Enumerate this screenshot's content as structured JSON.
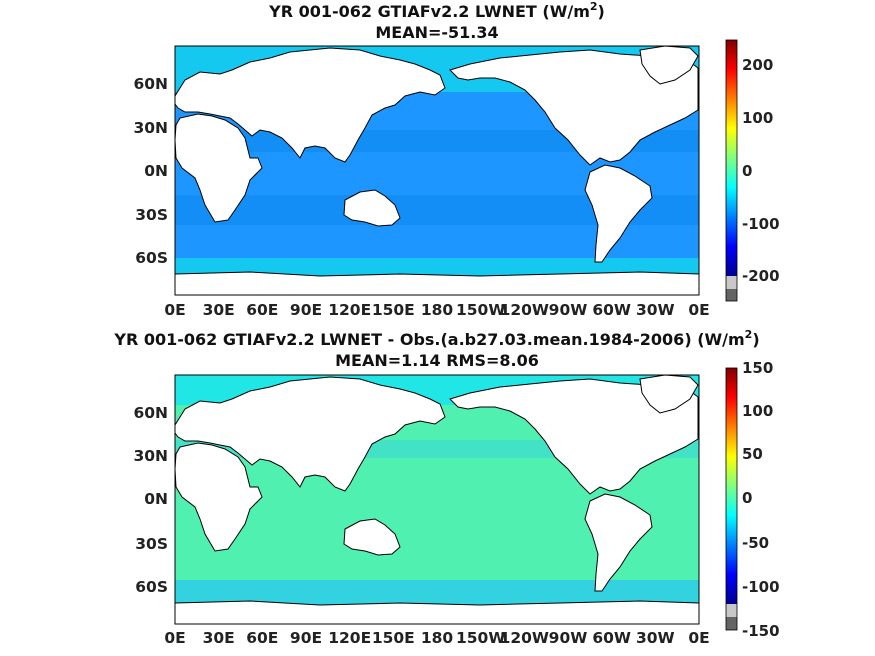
{
  "chart_data": [
    {
      "type": "heatmap",
      "title": "YR 001-062 GTIAFv2.2  LWNET (W/m",
      "title_superscript": "2",
      "title_suffix": ")",
      "subtitle": "MEAN=-51.34",
      "xlabel": "",
      "ylabel": "",
      "x_ticks": [
        "0E",
        "30E",
        "60E",
        "90E",
        "120E",
        "150E",
        "180",
        "150W",
        "120W",
        "90W",
        "60W",
        "30W",
        "0E"
      ],
      "y_ticks": [
        "60N",
        "30N",
        "0N",
        "30S",
        "60S"
      ],
      "y_tick_values": [
        60,
        30,
        0,
        -30,
        -60
      ],
      "colorbar": {
        "range": [
          -250,
          250
        ],
        "ticks": [
          200,
          100,
          0,
          -100,
          -200
        ],
        "tick_labels": [
          "200",
          "100",
          "0",
          "-100",
          "-200"
        ]
      },
      "colors": {
        "ocean_main": "#1e96ff",
        "ocean_high_lat": "#14c8f0",
        "ocean_subtropic": "#0a88ee",
        "land": "#ffffff"
      }
    },
    {
      "type": "heatmap",
      "title": "YR 001-062 GTIAFv2.2 LWNET - Obs.(a.b27.03.mean.1984-2006) (W/m",
      "title_superscript": "2",
      "title_suffix": ")",
      "subtitle": "MEAN=1.14 RMS=8.06",
      "xlabel": "",
      "ylabel": "",
      "x_ticks": [
        "0E",
        "30E",
        "60E",
        "90E",
        "120E",
        "150E",
        "180",
        "150W",
        "120W",
        "90W",
        "60W",
        "30W",
        "0E"
      ],
      "y_ticks": [
        "60N",
        "30N",
        "0N",
        "30S",
        "60S"
      ],
      "y_tick_values": [
        60,
        30,
        0,
        -30,
        -60
      ],
      "colorbar": {
        "range": [
          -150,
          150
        ],
        "ticks": [
          150,
          100,
          50,
          0,
          -50,
          -100,
          -150
        ],
        "tick_labels": [
          "150",
          "100",
          "50",
          "0",
          "-50",
          "-100",
          "-150"
        ]
      },
      "colors": {
        "ocean_main": "#50f0b0",
        "ocean_high_lat": "#20e6e6",
        "ocean_cool": "#28c8f0",
        "land": "#ffffff"
      }
    }
  ]
}
